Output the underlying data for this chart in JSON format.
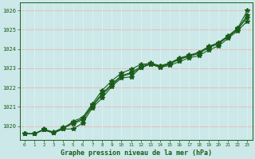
{
  "title": "Graphe pression niveau de la mer (hPa)",
  "bg_color": "#cce8e8",
  "grid_color_h": "#e8b8b8",
  "grid_color_v": "#e0f0f0",
  "line_color": "#1a5c1a",
  "xlim": [
    -0.5,
    23.5
  ],
  "ylim": [
    1019.3,
    1026.4
  ],
  "yticks": [
    1020,
    1021,
    1022,
    1023,
    1024,
    1025,
    1026
  ],
  "xticks": [
    0,
    1,
    2,
    3,
    4,
    5,
    6,
    7,
    8,
    9,
    10,
    11,
    12,
    13,
    14,
    15,
    16,
    17,
    18,
    19,
    20,
    21,
    22,
    23
  ],
  "series": [
    [
      1019.6,
      1019.6,
      1019.8,
      1019.65,
      1019.85,
      1019.85,
      1020.15,
      1020.95,
      1021.45,
      1022.05,
      1022.5,
      1022.55,
      1023.05,
      1023.2,
      1023.05,
      1023.15,
      1023.35,
      1023.55,
      1023.65,
      1023.95,
      1024.15,
      1024.55,
      1024.95,
      1025.45
    ],
    [
      1019.6,
      1019.6,
      1019.8,
      1019.65,
      1019.85,
      1020.25,
      1020.45,
      1021.15,
      1021.85,
      1022.35,
      1022.75,
      1022.95,
      1023.2,
      1023.25,
      1023.1,
      1023.25,
      1023.5,
      1023.65,
      1023.8,
      1024.1,
      1024.3,
      1024.65,
      1025.05,
      1025.75
    ],
    [
      1019.6,
      1019.6,
      1019.82,
      1019.67,
      1019.9,
      1020.12,
      1020.32,
      1021.02,
      1021.62,
      1022.12,
      1022.58,
      1022.72,
      1023.02,
      1023.22,
      1023.07,
      1023.22,
      1023.47,
      1023.62,
      1023.77,
      1024.07,
      1024.27,
      1024.62,
      1025.02,
      1025.65
    ],
    [
      1019.6,
      1019.6,
      1019.84,
      1019.69,
      1019.93,
      1020.18,
      1020.38,
      1021.08,
      1021.68,
      1022.18,
      1022.62,
      1022.78,
      1023.08,
      1023.28,
      1023.13,
      1023.28,
      1023.53,
      1023.68,
      1023.83,
      1024.13,
      1024.33,
      1024.68,
      1025.08,
      1026.0
    ]
  ]
}
